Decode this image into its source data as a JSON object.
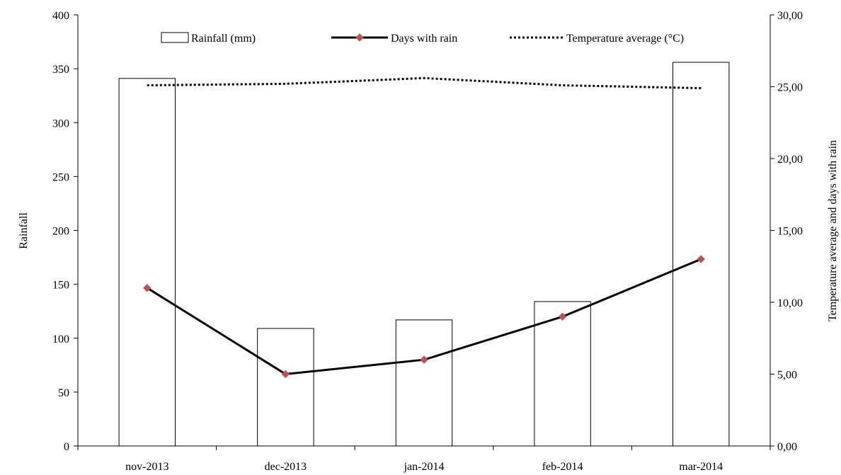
{
  "chart_data": {
    "type": "bar+line",
    "title": "",
    "categories": [
      "nov-2013",
      "dec-2013",
      "jan-2014",
      "feb-2014",
      "mar-2014"
    ],
    "series": [
      {
        "name": "Rainfall (mm)",
        "type": "bar",
        "axis": "left",
        "values": [
          341,
          109,
          117,
          134,
          356
        ]
      },
      {
        "name": "Days with rain",
        "type": "line",
        "axis": "right",
        "marker": "diamond",
        "color": "#c0504d",
        "values": [
          11,
          5,
          6,
          9,
          13
        ]
      },
      {
        "name": "Temperature average (°C)",
        "type": "line",
        "axis": "right",
        "style": "dotted",
        "values": [
          25.1,
          25.2,
          25.6,
          25.1,
          24.9
        ]
      }
    ],
    "ylabel_left": "Rainfall",
    "ylabel_right": "Temperature average and days with rain",
    "ylim_left": [
      0,
      400
    ],
    "ylim_right": [
      0,
      30
    ],
    "yticks_left": [
      "0",
      "50",
      "100",
      "150",
      "200",
      "250",
      "300",
      "350",
      "400"
    ],
    "yticks_right": [
      "0,00",
      "5,00",
      "10,00",
      "15,00",
      "20,00",
      "25,00",
      "30,00"
    ],
    "grid": false,
    "legend_position": "top"
  }
}
